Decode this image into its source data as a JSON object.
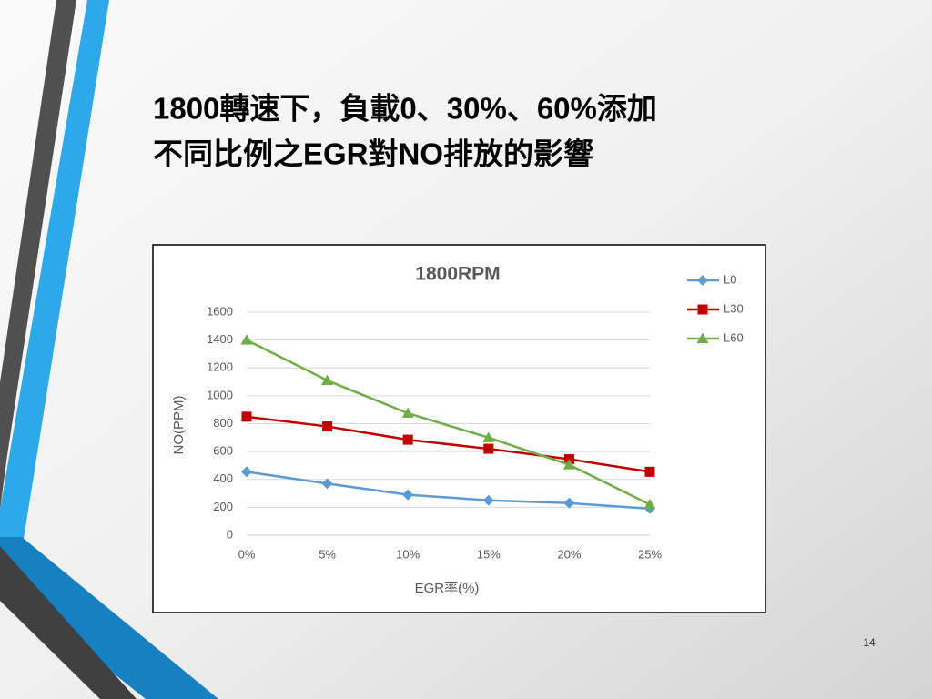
{
  "slide": {
    "title": [
      "1800轉速下，負載0、30%、60%添加",
      "不同比例之EGR對NO排放的影響"
    ],
    "page_number": 14
  },
  "chart_data": {
    "type": "line",
    "title": "1800RPM",
    "x_label": "EGR率(%)",
    "y_label": "NO(PPM)",
    "categories": [
      "0%",
      "5%",
      "10%",
      "15%",
      "20%",
      "25%"
    ],
    "series": [
      {
        "name": "L0",
        "color": "#5b9bd5",
        "marker": "diamond",
        "values": [
          455,
          370,
          290,
          250,
          230,
          190
        ]
      },
      {
        "name": "L30",
        "color": "#c00000",
        "marker": "square",
        "values": [
          850,
          780,
          685,
          620,
          545,
          455
        ]
      },
      {
        "name": "L60",
        "color": "#70ad47",
        "marker": "triangle",
        "values": [
          1400,
          1110,
          875,
          700,
          505,
          220
        ]
      }
    ],
    "ylim": [
      0,
      1600
    ],
    "yticks": [
      0,
      200,
      400,
      600,
      800,
      1000,
      1200,
      1400,
      1600
    ],
    "grid": true,
    "legend": "right"
  }
}
